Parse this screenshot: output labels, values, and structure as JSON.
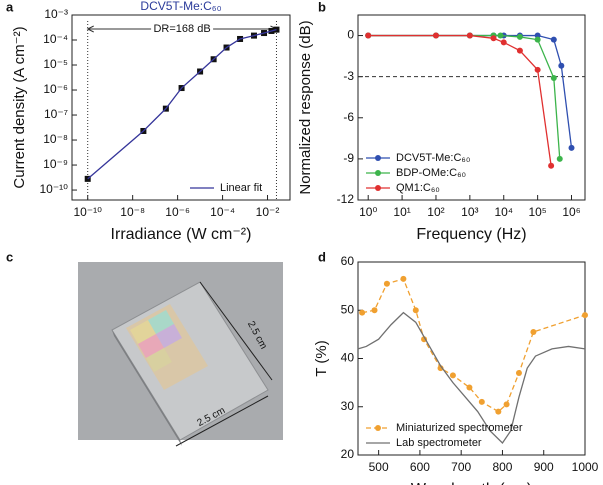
{
  "chart_data": [
    {
      "panel": "a",
      "type": "line",
      "title": "DCV5T-Me:C₆₀",
      "x_label": "Irradiance (W cm⁻²)",
      "y_label": "Current density (A cm⁻²)",
      "xlog": true,
      "ylog": true,
      "xlim": [
        2e-11,
        0.1
      ],
      "ylim": [
        4e-11,
        0.001
      ],
      "xticks": [
        {
          "value": 1e-10,
          "label": "10⁻¹⁰"
        },
        {
          "value": 1e-08,
          "label": "10⁻⁸"
        },
        {
          "value": 1e-06,
          "label": "10⁻⁶"
        },
        {
          "value": 0.0001,
          "label": "10⁻⁴"
        },
        {
          "value": 0.01,
          "label": "10⁻²"
        }
      ],
      "yticks": [
        {
          "value": 1e-10,
          "label": "10⁻¹⁰"
        },
        {
          "value": 1e-09,
          "label": "10⁻⁹"
        },
        {
          "value": 1e-08,
          "label": "10⁻⁸"
        },
        {
          "value": 1e-07,
          "label": "10⁻⁷"
        },
        {
          "value": 1e-06,
          "label": "10⁻⁶"
        },
        {
          "value": 1e-05,
          "label": "10⁻⁵"
        },
        {
          "value": 0.0001,
          "label": "10⁻⁴"
        },
        {
          "value": 0.001,
          "label": "10⁻³"
        }
      ],
      "annotation": "DR=168 dB",
      "dr_bounds": [
        1e-10,
        0.025
      ],
      "legend": "lower right",
      "series": [
        {
          "color": "#111111",
          "marker": "square",
          "line_style": "none",
          "x": [
            1e-10,
            3e-08,
            3e-07,
            1.5e-06,
            1e-05,
            4e-05,
            0.00015,
            0.0006,
            0.0025,
            0.007,
            0.015,
            0.025
          ],
          "values": [
            2.8e-10,
            2.3e-08,
            1.8e-07,
            1.2e-06,
            5.5e-06,
            1.7e-05,
            5e-05,
            0.00011,
            0.00015,
            0.00019,
            0.00023,
            0.00026
          ]
        },
        {
          "name": "Linear fit",
          "color": "#35359a",
          "marker": "none",
          "line_style": "solid",
          "x": [
            1e-10,
            3e-08,
            3e-07,
            1.5e-06,
            1e-05,
            4e-05,
            0.00015,
            0.0006,
            0.0025,
            0.007,
            0.015,
            0.025
          ],
          "values": [
            2.8e-10,
            2.3e-08,
            1.8e-07,
            1.2e-06,
            5.5e-06,
            1.7e-05,
            5e-05,
            0.00011,
            0.00015,
            0.00019,
            0.00023,
            0.00026
          ]
        }
      ]
    },
    {
      "panel": "b",
      "type": "line",
      "x_label": "Frequency (Hz)",
      "y_label": "Normalized response (dB)",
      "xlog": true,
      "ylog": false,
      "xlim": [
        0.5,
        2500000.0
      ],
      "ylim": [
        -12,
        1.5
      ],
      "xticks": [
        {
          "value": 1,
          "label": "10⁰"
        },
        {
          "value": 10,
          "label": "10¹"
        },
        {
          "value": 100,
          "label": "10²"
        },
        {
          "value": 1000,
          "label": "10³"
        },
        {
          "value": 10000,
          "label": "10⁴"
        },
        {
          "value": 100000,
          "label": "10⁵"
        },
        {
          "value": 1000000,
          "label": "10⁶"
        }
      ],
      "yticks": [
        0,
        -3,
        -6,
        -9,
        -12
      ],
      "hline": -3,
      "legend": "lower left",
      "series": [
        {
          "name": "DCV5T-Me:C₆₀",
          "color": "#2f4fb0",
          "marker": "circle",
          "line_style": "solid",
          "x": [
            1,
            100,
            1000,
            5000,
            10000,
            30000,
            100000,
            300000,
            500000,
            1000000
          ],
          "values": [
            0,
            0,
            0,
            0,
            0,
            0,
            0,
            -0.3,
            -2.2,
            -8.2
          ]
        },
        {
          "name": "BDP-OMe:C₆₀",
          "color": "#3cb44b",
          "marker": "circle",
          "line_style": "solid",
          "x": [
            1,
            100,
            1000,
            5000,
            8000,
            30000,
            100000,
            300000,
            450000
          ],
          "values": [
            0,
            0,
            0,
            0,
            0,
            -0.1,
            -0.3,
            -3.1,
            -9
          ]
        },
        {
          "name": "QM1:C₆₀",
          "color": "#e03030",
          "marker": "circle",
          "line_style": "solid",
          "x": [
            1,
            100,
            1000,
            5000,
            10000,
            30000,
            100000,
            250000
          ],
          "values": [
            0,
            0,
            0,
            -0.2,
            -0.5,
            -1.1,
            -2.5,
            -9.5
          ]
        }
      ]
    },
    {
      "panel": "d",
      "type": "line",
      "x_label": "Wavelength (nm)",
      "y_label": "T (%)",
      "xlog": false,
      "ylog": false,
      "xlim": [
        450,
        1000
      ],
      "ylim": [
        20,
        60
      ],
      "xticks": [
        500,
        600,
        700,
        800,
        900,
        1000
      ],
      "yticks": [
        20,
        30,
        40,
        50,
        60
      ],
      "legend": "lower left",
      "series": [
        {
          "name": "Miniaturized spectrometer",
          "color": "#f0a030",
          "marker": "circle",
          "line_style": "dashed",
          "x": [
            460,
            490,
            520,
            560,
            590,
            610,
            650,
            680,
            720,
            750,
            790,
            810,
            840,
            875,
            1000
          ],
          "values": [
            49.5,
            50,
            55.5,
            56.5,
            50,
            44,
            38,
            36.5,
            34,
            31,
            29,
            30.5,
            37,
            45.5,
            49
          ]
        },
        {
          "name": "Lab spectrometer",
          "color": "#707070",
          "marker": "none",
          "line_style": "solid",
          "x": [
            450,
            470,
            500,
            530,
            560,
            590,
            620,
            650,
            680,
            710,
            740,
            770,
            800,
            820,
            840,
            860,
            880,
            920,
            960,
            1000
          ],
          "values": [
            42,
            42.5,
            44,
            47,
            49.5,
            47.5,
            43,
            38.5,
            35,
            32,
            29,
            25,
            22.5,
            25,
            32,
            38,
            40.5,
            42,
            42.5,
            42
          ]
        }
      ]
    }
  ],
  "photo": {
    "panel": "c",
    "width_label": "2.5 cm",
    "height_label": "2.5 cm"
  }
}
